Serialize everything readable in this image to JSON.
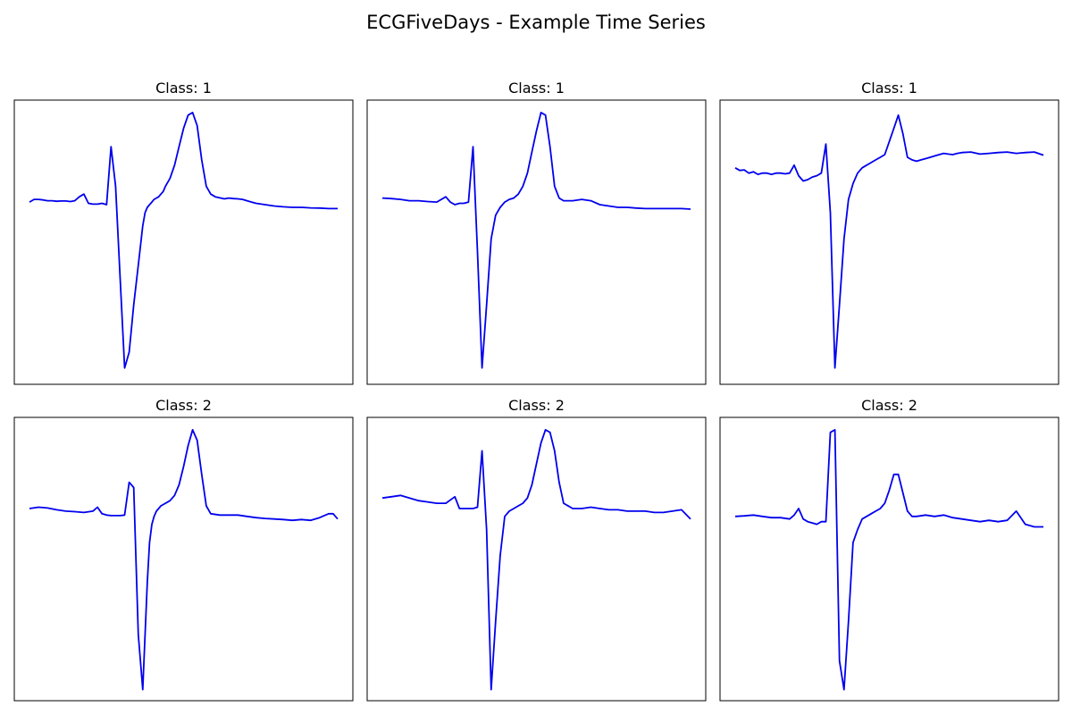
{
  "figure": {
    "title": "ECGFiveDays - Example Time Series",
    "line_color": "#0000ee",
    "frame_color": "#000000"
  },
  "chart_data": [
    {
      "type": "line",
      "title": "Class: 1",
      "xlabel": "",
      "ylabel": "",
      "axis_ticks": "hidden",
      "grid": false,
      "xlim": [
        0,
        136
      ],
      "ylim": [
        -6.75,
        3.5
      ],
      "series": [
        {
          "x": [
            0,
            2,
            4,
            6,
            8,
            10,
            12,
            14,
            16,
            18,
            20,
            22,
            24,
            26,
            28,
            30,
            32,
            34,
            36,
            38,
            40,
            42,
            44,
            46,
            48,
            50,
            51,
            52,
            53,
            54,
            55,
            56,
            57,
            58,
            59,
            60,
            62,
            64,
            66,
            68,
            70,
            72,
            74,
            76,
            78,
            80,
            82,
            84,
            86,
            88,
            90,
            92,
            94,
            96,
            98,
            100,
            104,
            108,
            112,
            116,
            120,
            124,
            128,
            132,
            136
          ],
          "y": [
            -0.1,
            0,
            0,
            -0.02,
            -0.05,
            -0.05,
            -0.07,
            -0.06,
            -0.06,
            -0.08,
            -0.05,
            0.1,
            0.2,
            -0.15,
            -0.18,
            -0.18,
            -0.15,
            -0.2,
            2.0,
            0.5,
            -3.0,
            -6.4,
            -5.8,
            -4.0,
            -2.5,
            -1.0,
            -0.5,
            -0.3,
            -0.2,
            -0.1,
            0,
            0.05,
            0.1,
            0.2,
            0.3,
            0.5,
            0.8,
            1.3,
            2.0,
            2.7,
            3.2,
            3.3,
            2.8,
            1.5,
            0.5,
            0.2,
            0.1,
            0.06,
            0.02,
            0.05,
            0.03,
            0.02,
            0,
            -0.05,
            -0.1,
            -0.15,
            -0.2,
            -0.25,
            -0.28,
            -0.3,
            -0.3,
            -0.32,
            -0.33,
            -0.35,
            -0.35
          ]
        }
      ]
    },
    {
      "type": "line",
      "title": "Class: 1",
      "xlabel": "",
      "ylabel": "",
      "axis_ticks": "hidden",
      "grid": false,
      "xlim": [
        0,
        136
      ],
      "ylim": [
        -6.75,
        3.5
      ],
      "series": [
        {
          "x": [
            0,
            4,
            8,
            12,
            16,
            20,
            24,
            28,
            30,
            32,
            34,
            36,
            38,
            40,
            42,
            44,
            46,
            48,
            50,
            52,
            54,
            56,
            58,
            60,
            62,
            64,
            66,
            68,
            70,
            72,
            74,
            76,
            78,
            80,
            84,
            88,
            92,
            96,
            100,
            104,
            108,
            112,
            116,
            120,
            124,
            128,
            132,
            136
          ],
          "y": [
            0.05,
            0.03,
            0,
            -0.05,
            -0.05,
            -0.08,
            -0.1,
            0.1,
            -0.1,
            -0.2,
            -0.15,
            -0.15,
            -0.1,
            2.0,
            -2.0,
            -6.4,
            -4.0,
            -1.5,
            -0.6,
            -0.3,
            -0.1,
            0,
            0.05,
            0.2,
            0.5,
            1.0,
            1.8,
            2.6,
            3.3,
            3.2,
            2.0,
            0.5,
            0.05,
            -0.05,
            -0.05,
            0,
            -0.05,
            -0.2,
            -0.25,
            -0.3,
            -0.3,
            -0.33,
            -0.35,
            -0.35,
            -0.35,
            -0.35,
            -0.35,
            -0.37
          ]
        }
      ]
    },
    {
      "type": "line",
      "title": "Class: 1",
      "xlabel": "",
      "ylabel": "",
      "axis_ticks": "hidden",
      "grid": false,
      "xlim": [
        0,
        136
      ],
      "ylim": [
        -6.75,
        3.5
      ],
      "series": [
        {
          "x": [
            0,
            2,
            4,
            6,
            8,
            10,
            12,
            14,
            16,
            18,
            20,
            22,
            24,
            26,
            28,
            30,
            32,
            34,
            36,
            38,
            40,
            42,
            44,
            46,
            48,
            50,
            52,
            54,
            56,
            58,
            60,
            62,
            64,
            66,
            68,
            70,
            72,
            74,
            76,
            78,
            80,
            82,
            84,
            86,
            88,
            90,
            92,
            94,
            96,
            98,
            100,
            104,
            108,
            112,
            116,
            120,
            124,
            128,
            132,
            136
          ],
          "y": [
            1.2,
            1.1,
            1.12,
            1.0,
            1.05,
            0.95,
            1.0,
            1.0,
            0.95,
            1.0,
            1.0,
            0.97,
            1.0,
            1.3,
            0.9,
            0.7,
            0.75,
            0.85,
            0.9,
            1.0,
            2.1,
            -0.5,
            -6.4,
            -4.0,
            -1.5,
            0,
            0.6,
            1.0,
            1.2,
            1.3,
            1.4,
            1.5,
            1.6,
            1.7,
            2.2,
            2.7,
            3.2,
            2.5,
            1.6,
            1.5,
            1.45,
            1.5,
            1.55,
            1.6,
            1.65,
            1.7,
            1.75,
            1.72,
            1.7,
            1.75,
            1.78,
            1.8,
            1.72,
            1.75,
            1.78,
            1.8,
            1.75,
            1.78,
            1.8,
            1.68
          ]
        }
      ]
    },
    {
      "type": "line",
      "title": "Class: 2",
      "xlabel": "",
      "ylabel": "",
      "axis_ticks": "hidden",
      "grid": false,
      "xlim": [
        0,
        136
      ],
      "ylim": [
        -6.75,
        3.5
      ],
      "series": [
        {
          "x": [
            0,
            4,
            8,
            12,
            16,
            20,
            24,
            28,
            30,
            32,
            34,
            36,
            38,
            40,
            42,
            44,
            46,
            48,
            50,
            51,
            52,
            53,
            54,
            55,
            56,
            57,
            58,
            60,
            62,
            64,
            66,
            68,
            70,
            72,
            74,
            76,
            78,
            80,
            84,
            88,
            92,
            96,
            100,
            104,
            108,
            112,
            116,
            120,
            124,
            128,
            132,
            134,
            136
          ],
          "y": [
            0.3,
            0.35,
            0.32,
            0.25,
            0.2,
            0.18,
            0.15,
            0.2,
            0.35,
            0.1,
            0.05,
            0.03,
            0.03,
            0.03,
            0.05,
            1.3,
            1.1,
            -4.5,
            -6.6,
            -4.5,
            -2.5,
            -1.0,
            -0.3,
            0,
            0.2,
            0.3,
            0.4,
            0.5,
            0.6,
            0.8,
            1.2,
            1.9,
            2.7,
            3.3,
            2.9,
            1.6,
            0.4,
            0.1,
            0.05,
            0.05,
            0.05,
            0,
            -0.05,
            -0.08,
            -0.1,
            -0.12,
            -0.15,
            -0.12,
            -0.15,
            -0.05,
            0.1,
            0.1,
            -0.1
          ]
        }
      ]
    },
    {
      "type": "line",
      "title": "Class: 2",
      "xlabel": "",
      "ylabel": "",
      "axis_ticks": "hidden",
      "grid": false,
      "xlim": [
        0,
        136
      ],
      "ylim": [
        -6.75,
        3.5
      ],
      "series": [
        {
          "x": [
            0,
            4,
            8,
            12,
            16,
            20,
            24,
            28,
            32,
            34,
            36,
            38,
            40,
            42,
            44,
            46,
            48,
            50,
            52,
            54,
            56,
            58,
            60,
            62,
            64,
            66,
            68,
            70,
            72,
            74,
            76,
            78,
            80,
            84,
            88,
            92,
            96,
            100,
            104,
            108,
            112,
            116,
            120,
            124,
            128,
            132,
            136
          ],
          "y": [
            0.7,
            0.75,
            0.8,
            0.7,
            0.6,
            0.55,
            0.5,
            0.5,
            0.75,
            0.3,
            0.3,
            0.3,
            0.3,
            0.35,
            2.5,
            -0.5,
            -6.6,
            -4.0,
            -1.5,
            0,
            0.2,
            0.3,
            0.4,
            0.5,
            0.7,
            1.2,
            2.0,
            2.8,
            3.3,
            3.2,
            2.5,
            1.3,
            0.5,
            0.3,
            0.3,
            0.35,
            0.3,
            0.25,
            0.25,
            0.2,
            0.2,
            0.2,
            0.15,
            0.15,
            0.2,
            0.25,
            -0.1
          ]
        }
      ]
    },
    {
      "type": "line",
      "title": "Class: 2",
      "xlabel": "",
      "ylabel": "",
      "axis_ticks": "hidden",
      "grid": false,
      "xlim": [
        0,
        136
      ],
      "ylim": [
        -6.75,
        3.5
      ],
      "series": [
        {
          "x": [
            0,
            4,
            8,
            12,
            16,
            20,
            24,
            26,
            28,
            30,
            32,
            34,
            36,
            38,
            40,
            42,
            44,
            46,
            48,
            50,
            52,
            54,
            56,
            58,
            60,
            62,
            64,
            66,
            68,
            70,
            72,
            74,
            76,
            78,
            80,
            84,
            88,
            92,
            96,
            100,
            104,
            108,
            112,
            116,
            120,
            124,
            128,
            132,
            136
          ],
          "y": [
            0,
            0.02,
            0.05,
            0,
            -0.05,
            -0.05,
            -0.1,
            0.05,
            0.3,
            -0.1,
            -0.2,
            -0.25,
            -0.3,
            -0.2,
            -0.2,
            3.2,
            3.3,
            -5.5,
            -6.6,
            -4.0,
            -1.0,
            -0.5,
            -0.1,
            0,
            0.1,
            0.2,
            0.3,
            0.5,
            1.0,
            1.6,
            1.6,
            0.9,
            0.2,
            0,
            0,
            0.05,
            0,
            0.05,
            -0.05,
            -0.1,
            -0.15,
            -0.2,
            -0.15,
            -0.2,
            -0.15,
            0.2,
            -0.3,
            -0.4,
            -0.4
          ]
        }
      ]
    }
  ]
}
